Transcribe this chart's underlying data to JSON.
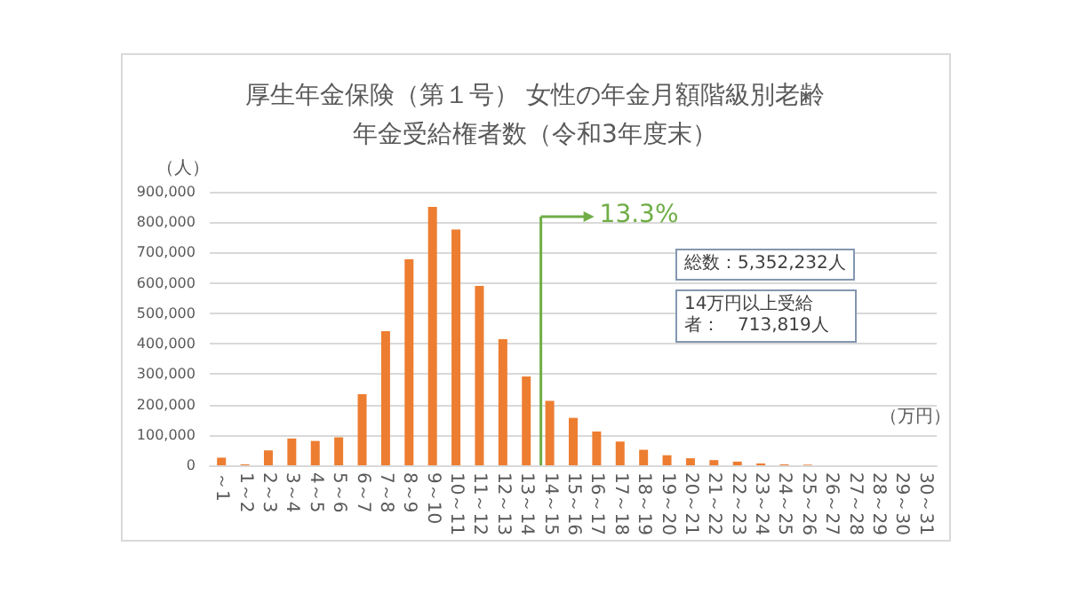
{
  "chart_data": {
    "type": "bar",
    "title": "厚生年金保険（第１号） 女性の年金月額階級別老齢年金受給権者数（令和3年度末）",
    "ylabel": "（人）",
    "xlabel": "（万円）",
    "categories": [
      "～1",
      "1～2",
      "2～3",
      "3～4",
      "4～5",
      "5～6",
      "6～7",
      "7～8",
      "8～9",
      "9～10",
      "10～11",
      "11～12",
      "12～13",
      "13～14",
      "14～15",
      "15～16",
      "16～17",
      "17～18",
      "18～19",
      "19～20",
      "20～21",
      "21～22",
      "22～23",
      "23～24",
      "24～25",
      "25～26",
      "26～27",
      "27～28",
      "28～29",
      "29～30",
      "30～31"
    ],
    "values": [
      25000,
      3000,
      49000,
      88000,
      80000,
      92000,
      234000,
      441000,
      678000,
      850000,
      776000,
      590000,
      415000,
      292000,
      212000,
      156000,
      111000,
      78000,
      51000,
      33000,
      23000,
      17000,
      12000,
      6000,
      3000,
      2000,
      null,
      null,
      0,
      0,
      0
    ],
    "color": "#ed7d31",
    "ylim": [
      0,
      900000
    ],
    "yticks": [
      0,
      {
        "value": 100000,
        "label": "100,000"
      },
      {
        "value": 200000,
        "label": "200,000"
      },
      {
        "value": 300000,
        "label": "300,000"
      },
      {
        "value": 400000,
        "label": "400,000"
      },
      {
        "value": 500000,
        "label": "500,000"
      },
      {
        "value": 600000,
        "label": "600,000"
      },
      {
        "value": 700000,
        "label": "700,000"
      },
      {
        "value": 800000,
        "label": "800,000"
      },
      {
        "value": 900000,
        "label": "900,000"
      }
    ],
    "grid": "y",
    "ref_lines": [
      {
        "axis": "x",
        "value": "14～15",
        "label": "13.3%",
        "color": "#70ad47"
      }
    ],
    "annotations": [
      "総数：5,352,232人",
      "14万円以上受給者：　713,819人"
    ]
  }
}
